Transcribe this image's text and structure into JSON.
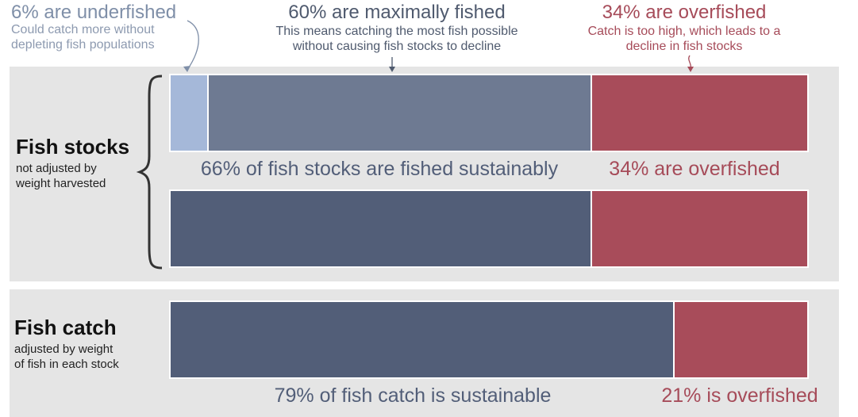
{
  "colors": {
    "underfished": "#a5b8d9",
    "maximally": "#6e7a92",
    "sustainable": "#525e78",
    "overfished": "#a84c5a"
  },
  "annotations": {
    "underfished": {
      "title": "6% are underfished",
      "line1": "Could catch more without",
      "line2": "depleting fish populations"
    },
    "maximally": {
      "title": "60% are maximally fished",
      "line1": "This means catching the most fish possible",
      "line2": "without causing fish stocks to decline"
    },
    "overfished": {
      "title": "34% are overfished",
      "line1": "Catch is too high, which leads to a",
      "line2": "decline in fish stocks"
    }
  },
  "sections": {
    "stocks": {
      "title": "Fish stocks",
      "line1": "not adjusted by",
      "line2": "weight harvested",
      "sustainable_label": "66% of fish stocks are fished sustainably",
      "overfished_label": "34% are overfished"
    },
    "catch": {
      "title": "Fish catch",
      "line1": "adjusted by weight",
      "line2": "of fish in each stock",
      "sustainable_label": "79% of fish catch is sustainable",
      "overfished_label": "21% is overfished"
    }
  },
  "chart_data": {
    "type": "bar",
    "orientation": "horizontal-stacked",
    "unit": "%",
    "rows": [
      {
        "name": "Fish stocks (detailed)",
        "segments": [
          {
            "name": "Underfished",
            "value": 6,
            "color": "underfished"
          },
          {
            "name": "Maximally fished",
            "value": 60,
            "color": "maximally"
          },
          {
            "name": "Overfished",
            "value": 34,
            "color": "overfished"
          }
        ]
      },
      {
        "name": "Fish stocks",
        "segments": [
          {
            "name": "Sustainable",
            "value": 66,
            "color": "sustainable"
          },
          {
            "name": "Overfished",
            "value": 34,
            "color": "overfished"
          }
        ]
      },
      {
        "name": "Fish catch",
        "segments": [
          {
            "name": "Sustainable",
            "value": 79,
            "color": "sustainable"
          },
          {
            "name": "Overfished",
            "value": 21,
            "color": "overfished"
          }
        ]
      }
    ]
  }
}
